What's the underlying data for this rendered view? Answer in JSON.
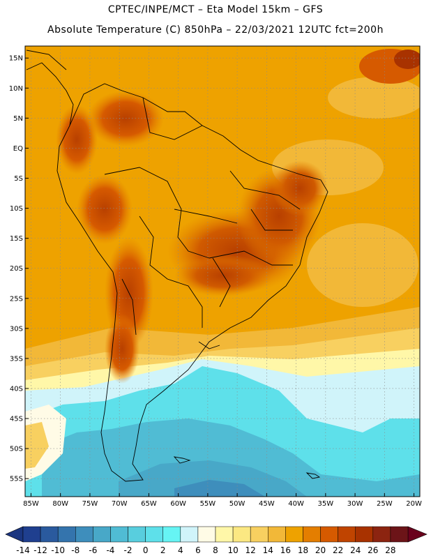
{
  "title": {
    "line1": "CPTEC/INPE/MCT –  Eta Model 15km – GFS",
    "line2": "Absolute Temperature (C) 850hPa – 22/03/2021 12UTC fct=200h"
  },
  "map": {
    "lat_labels": [
      "15N",
      "10N",
      "5N",
      "EQ",
      "5S",
      "10S",
      "15S",
      "20S",
      "25S",
      "30S",
      "35S",
      "40S",
      "45S",
      "50S",
      "55S"
    ],
    "lon_labels": [
      "85W",
      "80W",
      "75W",
      "70W",
      "65W",
      "60W",
      "55W",
      "50W",
      "45W",
      "40W",
      "35W",
      "30W",
      "25W",
      "20W"
    ],
    "lon_range": [
      -86,
      -19
    ],
    "lat_range": [
      17,
      -58
    ]
  },
  "colorbar": {
    "labels": [
      "-14",
      "-12",
      "-10",
      "-8",
      "-6",
      "-4",
      "-2",
      "0",
      "2",
      "4",
      "6",
      "8",
      "10",
      "12",
      "14",
      "16",
      "18",
      "20",
      "22",
      "24",
      "26",
      "28"
    ],
    "colors": [
      "#1f3f8f",
      "#2a5a9e",
      "#3474ad",
      "#3e8ebc",
      "#48a8c8",
      "#50bcd4",
      "#58cede",
      "#5ee0ea",
      "#66f4f4",
      "#d0f4fa",
      "#fffbe6",
      "#fff7a8",
      "#fbe882",
      "#f8d060",
      "#f2b838",
      "#eea200",
      "#e47e00",
      "#d65a00",
      "#c04400",
      "#a83200",
      "#8c2410",
      "#6c1418"
    ],
    "under_color": "#1a3580",
    "over_color": "#6a001c"
  }
}
